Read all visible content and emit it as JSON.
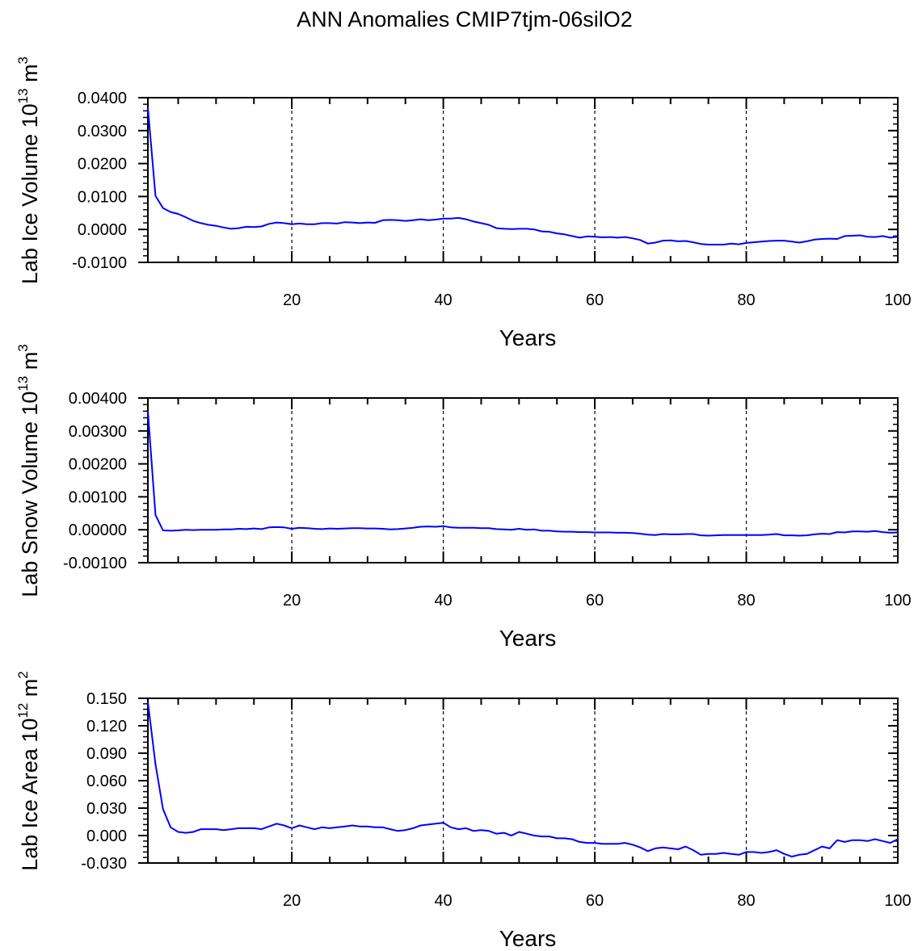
{
  "title": "ANN Anomalies CMIP7tjm-06silO2",
  "colors": {
    "line": "#0000ff",
    "axis": "#000000",
    "grid": "#000000"
  },
  "chart_data": [
    {
      "type": "line",
      "xlabel": "Years",
      "ylabel": "Lab Ice Volume 10",
      "ylabel_exp": "13",
      "ylabel_unit": " m",
      "ylabel_unit_exp": "3",
      "xlim": [
        1,
        100
      ],
      "ylim": [
        -0.01,
        0.04
      ],
      "x_ticks": [
        20,
        40,
        60,
        80,
        100
      ],
      "y_ticks": [
        "0.0400",
        "0.0300",
        "0.0200",
        "0.0100",
        "0.0000",
        "-0.0100"
      ],
      "y_tick_values": [
        0.04,
        0.03,
        0.02,
        0.01,
        0.0,
        -0.01
      ],
      "grid": "vertical dashed at x ticks",
      "series": [
        {
          "x": [
            1,
            2,
            3,
            4,
            5,
            6,
            7,
            8,
            9,
            10,
            11,
            12,
            13,
            14,
            15,
            16,
            17,
            18,
            19,
            20,
            21,
            22,
            23,
            24,
            25,
            26,
            27,
            28,
            29,
            30,
            31,
            32,
            33,
            34,
            35,
            36,
            37,
            38,
            39,
            40,
            41,
            42,
            43,
            44,
            45,
            46,
            47,
            48,
            49,
            50,
            51,
            52,
            53,
            54,
            55,
            56,
            57,
            58,
            59,
            60,
            61,
            62,
            63,
            64,
            65,
            66,
            67,
            68,
            69,
            70,
            71,
            72,
            73,
            74,
            75,
            76,
            77,
            78,
            79,
            80,
            81,
            82,
            83,
            84,
            85,
            86,
            87,
            88,
            89,
            90,
            91,
            92,
            93,
            94,
            95,
            96,
            97,
            98,
            99,
            100
          ],
          "values": [
            0.037,
            0.0102,
            0.0065,
            0.0053,
            0.0047,
            0.0037,
            0.0026,
            0.0019,
            0.0014,
            0.0011,
            0.0006,
            0.0002,
            0.0004,
            0.0008,
            0.0007,
            0.0009,
            0.0017,
            0.0021,
            0.0019,
            0.0016,
            0.0018,
            0.0016,
            0.0016,
            0.0019,
            0.0019,
            0.0018,
            0.0022,
            0.0021,
            0.0019,
            0.0021,
            0.002,
            0.0028,
            0.0029,
            0.0028,
            0.0026,
            0.0028,
            0.0031,
            0.0028,
            0.003,
            0.0033,
            0.0033,
            0.0035,
            0.0031,
            0.0024,
            0.0019,
            0.0014,
            0.0004,
            0.0002,
            0.0001,
            0.0002,
            0.0002,
            0.0,
            -0.0006,
            -0.0007,
            -0.0012,
            -0.0015,
            -0.002,
            -0.0025,
            -0.0021,
            -0.0022,
            -0.0024,
            -0.0023,
            -0.0025,
            -0.0023,
            -0.0027,
            -0.0032,
            -0.0043,
            -0.004,
            -0.0034,
            -0.0033,
            -0.0036,
            -0.0035,
            -0.0039,
            -0.0044,
            -0.0046,
            -0.0046,
            -0.0046,
            -0.0043,
            -0.0045,
            -0.0041,
            -0.0039,
            -0.0037,
            -0.0035,
            -0.0034,
            -0.0034,
            -0.0037,
            -0.004,
            -0.0036,
            -0.0031,
            -0.0029,
            -0.0028,
            -0.0029,
            -0.002,
            -0.0019,
            -0.0018,
            -0.0022,
            -0.0023,
            -0.002,
            -0.0025,
            -0.0022
          ]
        }
      ]
    },
    {
      "type": "line",
      "xlabel": "Years",
      "ylabel": "Lab Snow Volume 10",
      "ylabel_exp": "13",
      "ylabel_unit": " m",
      "ylabel_unit_exp": "3",
      "xlim": [
        1,
        100
      ],
      "ylim": [
        -0.001,
        0.004
      ],
      "x_ticks": [
        20,
        40,
        60,
        80,
        100
      ],
      "y_ticks": [
        "0.00400",
        "0.00300",
        "0.00200",
        "0.00100",
        "0.00000",
        "-0.00100"
      ],
      "y_tick_values": [
        0.004,
        0.003,
        0.002,
        0.001,
        0.0,
        -0.001
      ],
      "grid": "vertical dashed at x ticks",
      "series": [
        {
          "x": [
            1,
            2,
            3,
            4,
            5,
            6,
            7,
            8,
            9,
            10,
            11,
            12,
            13,
            14,
            15,
            16,
            17,
            18,
            19,
            20,
            21,
            22,
            23,
            24,
            25,
            26,
            27,
            28,
            29,
            30,
            31,
            32,
            33,
            34,
            35,
            36,
            37,
            38,
            39,
            40,
            41,
            42,
            43,
            44,
            45,
            46,
            47,
            48,
            49,
            50,
            51,
            52,
            53,
            54,
            55,
            56,
            57,
            58,
            59,
            60,
            61,
            62,
            63,
            64,
            65,
            66,
            67,
            68,
            69,
            70,
            71,
            72,
            73,
            74,
            75,
            76,
            77,
            78,
            79,
            80,
            81,
            82,
            83,
            84,
            85,
            86,
            87,
            88,
            89,
            90,
            91,
            92,
            93,
            94,
            95,
            96,
            97,
            98,
            99,
            100
          ],
          "values": [
            0.0036,
            0.00045,
            -2e-05,
            -3e-05,
            -2e-05,
            0.0,
            -1e-05,
            0.0,
            0.0,
            0.0,
            1e-05,
            1e-05,
            3e-05,
            2e-05,
            4e-05,
            2e-05,
            7e-05,
            8e-05,
            7e-05,
            3e-05,
            6e-05,
            5e-05,
            3e-05,
            2e-05,
            4e-05,
            3e-05,
            4e-05,
            5e-05,
            5e-05,
            4e-05,
            4e-05,
            3e-05,
            1e-05,
            2e-05,
            4e-05,
            6e-05,
            9e-05,
            0.0001,
            9e-05,
            0.00011,
            7e-05,
            6e-05,
            6e-05,
            6e-05,
            5e-05,
            5e-05,
            2e-05,
            1e-05,
            0.0,
            3e-05,
            0.0,
            1e-05,
            -3e-05,
            -3e-05,
            -5e-05,
            -6e-05,
            -6e-05,
            -7e-05,
            -7e-05,
            -8e-05,
            -8e-05,
            -8e-05,
            -9e-05,
            -9e-05,
            -0.0001,
            -0.00012,
            -0.00015,
            -0.00016,
            -0.00013,
            -0.00014,
            -0.00014,
            -0.00013,
            -0.00013,
            -0.00017,
            -0.00018,
            -0.00017,
            -0.00016,
            -0.00016,
            -0.00016,
            -0.00016,
            -0.00016,
            -0.00016,
            -0.00015,
            -0.00013,
            -0.00017,
            -0.00017,
            -0.00018,
            -0.00017,
            -0.00014,
            -0.00012,
            -0.00013,
            -7e-05,
            -8e-05,
            -5e-05,
            -5e-05,
            -6e-05,
            -4e-05,
            -7e-05,
            -9e-05,
            -8e-05
          ]
        }
      ]
    },
    {
      "type": "line",
      "xlabel": "Years",
      "ylabel": "Lab Ice Area 10",
      "ylabel_exp": "12",
      "ylabel_unit": " m",
      "ylabel_unit_exp": "2",
      "xlim": [
        1,
        100
      ],
      "ylim": [
        -0.03,
        0.15
      ],
      "x_ticks": [
        20,
        40,
        60,
        80,
        100
      ],
      "y_ticks": [
        "0.150",
        "0.120",
        "0.090",
        "0.060",
        "0.030",
        "0.000",
        "-0.030"
      ],
      "y_tick_values": [
        0.15,
        0.12,
        0.09,
        0.06,
        0.03,
        0.0,
        -0.03
      ],
      "grid": "vertical dashed at x ticks",
      "series": [
        {
          "x": [
            1,
            2,
            3,
            4,
            5,
            6,
            7,
            8,
            9,
            10,
            11,
            12,
            13,
            14,
            15,
            16,
            17,
            18,
            19,
            20,
            21,
            22,
            23,
            24,
            25,
            26,
            27,
            28,
            29,
            30,
            31,
            32,
            33,
            34,
            35,
            36,
            37,
            38,
            39,
            40,
            41,
            42,
            43,
            44,
            45,
            46,
            47,
            48,
            49,
            50,
            51,
            52,
            53,
            54,
            55,
            56,
            57,
            58,
            59,
            60,
            61,
            62,
            63,
            64,
            65,
            66,
            67,
            68,
            69,
            70,
            71,
            72,
            73,
            74,
            75,
            76,
            77,
            78,
            79,
            80,
            81,
            82,
            83,
            84,
            85,
            86,
            87,
            88,
            89,
            90,
            91,
            92,
            93,
            94,
            95,
            96,
            97,
            98,
            99,
            100
          ],
          "values": [
            0.146,
            0.078,
            0.029,
            0.009,
            0.004,
            0.003,
            0.004,
            0.007,
            0.007,
            0.007,
            0.006,
            0.007,
            0.008,
            0.008,
            0.008,
            0.007,
            0.01,
            0.013,
            0.011,
            0.008,
            0.011,
            0.009,
            0.007,
            0.009,
            0.008,
            0.009,
            0.01,
            0.011,
            0.01,
            0.01,
            0.009,
            0.009,
            0.007,
            0.005,
            0.006,
            0.008,
            0.011,
            0.012,
            0.013,
            0.014,
            0.009,
            0.007,
            0.008,
            0.005,
            0.006,
            0.005,
            0.002,
            0.003,
            0.0,
            0.004,
            0.002,
            0.0,
            -0.001,
            -0.001,
            -0.003,
            -0.003,
            -0.004,
            -0.007,
            -0.008,
            -0.008,
            -0.009,
            -0.009,
            -0.009,
            -0.008,
            -0.01,
            -0.013,
            -0.017,
            -0.014,
            -0.013,
            -0.014,
            -0.015,
            -0.012,
            -0.016,
            -0.021,
            -0.02,
            -0.02,
            -0.019,
            -0.02,
            -0.021,
            -0.018,
            -0.018,
            -0.019,
            -0.018,
            -0.016,
            -0.02,
            -0.023,
            -0.021,
            -0.02,
            -0.016,
            -0.012,
            -0.014,
            -0.005,
            -0.007,
            -0.005,
            -0.005,
            -0.006,
            -0.004,
            -0.006,
            -0.008,
            -0.004
          ]
        }
      ]
    }
  ]
}
